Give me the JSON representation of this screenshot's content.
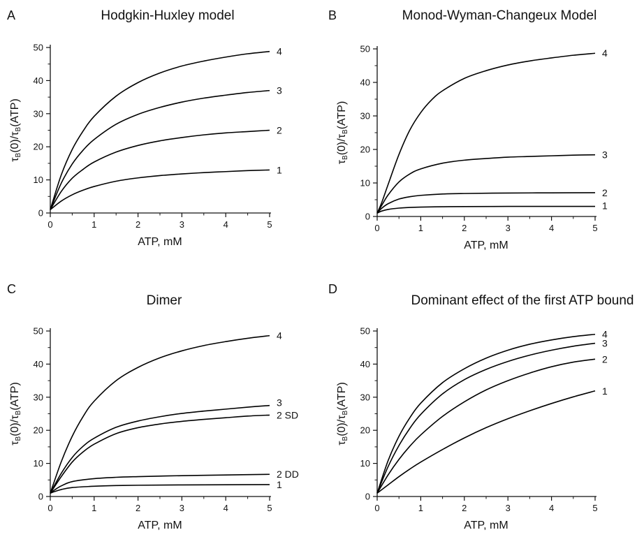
{
  "chart_data": [
    {
      "panel_letter": "A",
      "title": "Hodgkin-Huxley model",
      "type": "line",
      "xlabel": "ATP, mM",
      "ylabel": "τB(0)/τB(ATP)",
      "ylabel_parts": {
        "tau": "τ",
        "sub": "B",
        "mid": "(0)/",
        "tau2": "τ",
        "sub2": "B",
        "end": "(ATP)"
      },
      "xlim": [
        0,
        5
      ],
      "ylim": [
        0,
        50
      ],
      "xticks": [
        0,
        1,
        2,
        3,
        4,
        5
      ],
      "yticks": [
        0,
        10,
        20,
        30,
        40,
        50
      ],
      "series": [
        {
          "name": "1",
          "x": [
            0,
            0.25,
            0.5,
            0.75,
            1,
            1.5,
            2,
            2.5,
            3,
            3.5,
            4,
            4.5,
            5
          ],
          "y": [
            1,
            3.6,
            5.5,
            6.9,
            8.0,
            9.6,
            10.6,
            11.3,
            11.8,
            12.2,
            12.5,
            12.8,
            13.0
          ]
        },
        {
          "name": "2",
          "x": [
            0,
            0.25,
            0.5,
            0.75,
            1,
            1.5,
            2,
            2.5,
            3,
            3.5,
            4,
            4.5,
            5
          ],
          "y": [
            1,
            6.5,
            10.5,
            13.2,
            15.4,
            18.4,
            20.4,
            21.8,
            22.8,
            23.6,
            24.2,
            24.6,
            25.0
          ]
        },
        {
          "name": "3",
          "x": [
            0,
            0.25,
            0.5,
            0.75,
            1,
            1.5,
            2,
            2.5,
            3,
            3.5,
            4,
            4.5,
            5
          ],
          "y": [
            1,
            9.0,
            14.8,
            19.0,
            22.2,
            26.8,
            29.8,
            31.9,
            33.5,
            34.7,
            35.6,
            36.4,
            37.0
          ]
        },
        {
          "name": "4",
          "x": [
            0,
            0.25,
            0.5,
            0.75,
            1,
            1.5,
            2,
            2.5,
            3,
            3.5,
            4,
            4.5,
            5
          ],
          "y": [
            1,
            11.5,
            19.2,
            24.8,
            29.2,
            35.3,
            39.4,
            42.3,
            44.4,
            45.9,
            47.1,
            48.1,
            48.8
          ]
        }
      ]
    },
    {
      "panel_letter": "B",
      "title": "Monod-Wyman-Changeux Model",
      "type": "line",
      "xlabel": "ATP, mM",
      "ylabel": "τB(0)/τB(ATP)",
      "ylabel_parts": {
        "tau": "τ",
        "sub": "B",
        "mid": "(0)/",
        "tau2": "τ",
        "sub2": "B",
        "end": "(ATP)"
      },
      "xlim": [
        0,
        5
      ],
      "ylim": [
        0,
        50
      ],
      "xticks": [
        0,
        1,
        2,
        3,
        4,
        5
      ],
      "yticks": [
        0,
        10,
        20,
        30,
        40,
        50
      ],
      "series": [
        {
          "name": "1",
          "x": [
            0,
            0.1,
            0.25,
            0.5,
            0.75,
            1,
            1.5,
            2,
            3,
            4,
            5
          ],
          "y": [
            1,
            1.6,
            2.1,
            2.5,
            2.7,
            2.8,
            2.9,
            2.95,
            3.0,
            3.0,
            3.0
          ]
        },
        {
          "name": "2",
          "x": [
            0,
            0.1,
            0.25,
            0.5,
            0.75,
            1,
            1.5,
            2,
            3,
            4,
            5
          ],
          "y": [
            1,
            2.4,
            3.8,
            5.2,
            5.9,
            6.3,
            6.7,
            6.85,
            7.0,
            7.05,
            7.1
          ]
        },
        {
          "name": "3",
          "x": [
            0,
            0.1,
            0.25,
            0.5,
            0.75,
            1,
            1.5,
            2,
            2.5,
            3,
            3.5,
            4,
            4.5,
            5
          ],
          "y": [
            1,
            3.2,
            6.4,
            10.3,
            12.7,
            14.2,
            15.9,
            16.8,
            17.3,
            17.7,
            17.9,
            18.1,
            18.3,
            18.4
          ]
        },
        {
          "name": "4",
          "x": [
            0,
            0.1,
            0.25,
            0.5,
            0.75,
            1,
            1.25,
            1.5,
            2,
            2.5,
            3,
            3.5,
            4,
            4.5,
            5
          ],
          "y": [
            1,
            4.0,
            9.5,
            18.5,
            25.8,
            31.0,
            34.8,
            37.5,
            41.2,
            43.5,
            45.2,
            46.4,
            47.3,
            48.1,
            48.7
          ]
        }
      ]
    },
    {
      "panel_letter": "C",
      "title": "Dimer",
      "type": "line",
      "xlabel": "ATP, mM",
      "ylabel": "τB(0)/τB(ATP)",
      "ylabel_parts": {
        "tau": "τ",
        "sub": "B",
        "mid": "(0)/",
        "tau2": "τ",
        "sub2": "B",
        "end": "(ATP)"
      },
      "xlim": [
        0,
        5
      ],
      "ylim": [
        0,
        50
      ],
      "xticks": [
        0,
        1,
        2,
        3,
        4,
        5
      ],
      "yticks": [
        0,
        10,
        20,
        30,
        40,
        50
      ],
      "series": [
        {
          "name": "1",
          "x": [
            0,
            0.1,
            0.25,
            0.5,
            1,
            1.5,
            2,
            3,
            4,
            5
          ],
          "y": [
            1,
            1.5,
            2.1,
            2.7,
            3.1,
            3.3,
            3.4,
            3.5,
            3.55,
            3.6
          ]
        },
        {
          "name": "2  DD",
          "x": [
            0,
            0.1,
            0.25,
            0.5,
            1,
            1.5,
            2,
            3,
            4,
            5
          ],
          "y": [
            1,
            2.0,
            3.2,
            4.5,
            5.4,
            5.8,
            6.0,
            6.3,
            6.5,
            6.7
          ]
        },
        {
          "name": "2 SD",
          "x": [
            0,
            0.25,
            0.5,
            0.75,
            1,
            1.5,
            2,
            2.5,
            3,
            3.5,
            4,
            4.5,
            5
          ],
          "y": [
            1,
            6.0,
            10.4,
            13.5,
            15.8,
            19.0,
            20.8,
            21.9,
            22.7,
            23.3,
            23.8,
            24.3,
            24.6
          ]
        },
        {
          "name": "3",
          "x": [
            0,
            0.25,
            0.5,
            0.75,
            1,
            1.5,
            2,
            2.5,
            3,
            3.5,
            4,
            4.5,
            5
          ],
          "y": [
            1,
            7.0,
            11.8,
            15.2,
            17.6,
            20.9,
            22.8,
            24.1,
            25.1,
            25.8,
            26.4,
            27.0,
            27.5
          ]
        },
        {
          "name": "4",
          "x": [
            0,
            0.25,
            0.5,
            0.75,
            1,
            1.5,
            2,
            2.5,
            3,
            3.5,
            4,
            4.5,
            5
          ],
          "y": [
            1,
            10.5,
            18.2,
            24.2,
            28.8,
            35.0,
            39.0,
            41.9,
            44.0,
            45.6,
            46.8,
            47.8,
            48.6
          ]
        }
      ]
    },
    {
      "panel_letter": "D",
      "title": "Dominant effect of the first ATP bound",
      "type": "line",
      "xlabel": "ATP, mM",
      "ylabel": "τB(0)/τB(ATP)",
      "ylabel_parts": {
        "tau": "τ",
        "sub": "B",
        "mid": "(0)/",
        "tau2": "τ",
        "sub2": "B",
        "end": "(ATP)"
      },
      "xlim": [
        0,
        5
      ],
      "ylim": [
        0,
        50
      ],
      "xticks": [
        0,
        1,
        2,
        3,
        4,
        5
      ],
      "yticks": [
        0,
        10,
        20,
        30,
        40,
        50
      ],
      "series": [
        {
          "name": "1",
          "x": [
            0,
            0.25,
            0.5,
            0.75,
            1,
            1.5,
            2,
            2.5,
            3,
            3.5,
            4,
            4.5,
            5
          ],
          "y": [
            1,
            3.5,
            6.0,
            8.3,
            10.4,
            14.2,
            17.7,
            20.8,
            23.5,
            25.9,
            28.1,
            30.1,
            31.9
          ]
        },
        {
          "name": "2",
          "x": [
            0,
            0.25,
            0.5,
            0.75,
            1,
            1.5,
            2,
            2.5,
            3,
            3.5,
            4,
            4.5,
            5
          ],
          "y": [
            1,
            6.5,
            11.2,
            15.2,
            18.6,
            24.2,
            28.6,
            32.2,
            35.0,
            37.3,
            39.2,
            40.6,
            41.5
          ]
        },
        {
          "name": "3",
          "x": [
            0,
            0.25,
            0.5,
            0.75,
            1,
            1.5,
            2,
            2.5,
            3,
            3.5,
            4,
            4.5,
            5
          ],
          "y": [
            1,
            9.0,
            15.4,
            20.6,
            24.8,
            31.0,
            35.3,
            38.4,
            40.8,
            42.7,
            44.2,
            45.4,
            46.3
          ]
        },
        {
          "name": "4",
          "x": [
            0,
            0.25,
            0.5,
            0.75,
            1,
            1.5,
            2,
            2.5,
            3,
            3.5,
            4,
            4.5,
            5
          ],
          "y": [
            1,
            10.8,
            18.2,
            23.8,
            28.2,
            34.4,
            38.6,
            41.8,
            44.2,
            46.0,
            47.3,
            48.3,
            49.0
          ]
        }
      ]
    }
  ]
}
